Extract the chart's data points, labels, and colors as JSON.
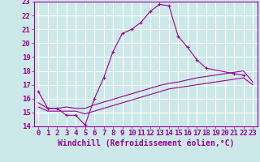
{
  "title": "",
  "xlabel": "Windchill (Refroidissement éolien,°C)",
  "ylabel": "",
  "background_color": "#cce8e8",
  "grid_color": "#ffffff",
  "line_color": "#990099",
  "xlim": [
    -0.5,
    23.5
  ],
  "ylim": [
    14,
    23
  ],
  "yticks": [
    14,
    15,
    16,
    17,
    18,
    19,
    20,
    21,
    22,
    23
  ],
  "xticks": [
    0,
    1,
    2,
    3,
    4,
    5,
    6,
    7,
    8,
    9,
    10,
    11,
    12,
    13,
    14,
    15,
    16,
    17,
    18,
    19,
    20,
    21,
    22,
    23
  ],
  "series1_x": [
    0,
    1,
    2,
    3,
    4,
    5,
    6,
    7,
    8,
    9,
    10,
    11,
    12,
    13,
    14,
    15,
    16,
    17,
    18,
    21,
    22
  ],
  "series1_y": [
    16.5,
    15.3,
    15.3,
    14.8,
    14.8,
    14.1,
    16.0,
    17.5,
    19.4,
    20.7,
    21.0,
    21.5,
    22.3,
    22.8,
    22.7,
    20.5,
    19.7,
    18.8,
    18.2,
    17.8,
    17.7
  ],
  "series2_x": [
    0,
    1,
    2,
    3,
    4,
    5,
    6,
    7,
    8,
    9,
    10,
    11,
    12,
    13,
    14,
    15,
    16,
    17,
    18,
    19,
    20,
    21,
    22,
    23
  ],
  "series2_y": [
    15.7,
    15.3,
    15.3,
    15.4,
    15.3,
    15.3,
    15.55,
    15.75,
    15.95,
    16.15,
    16.35,
    16.55,
    16.75,
    16.95,
    17.1,
    17.2,
    17.35,
    17.5,
    17.6,
    17.7,
    17.8,
    17.9,
    18.0,
    17.2
  ],
  "series3_x": [
    0,
    1,
    2,
    3,
    4,
    5,
    6,
    7,
    8,
    9,
    10,
    11,
    12,
    13,
    14,
    15,
    16,
    17,
    18,
    19,
    20,
    21,
    22,
    23
  ],
  "series3_y": [
    15.4,
    15.1,
    15.1,
    15.1,
    15.1,
    14.9,
    15.1,
    15.3,
    15.5,
    15.7,
    15.9,
    16.1,
    16.3,
    16.5,
    16.7,
    16.8,
    16.9,
    17.0,
    17.1,
    17.2,
    17.3,
    17.4,
    17.5,
    17.0
  ],
  "font_color": "#990099",
  "tick_fontsize": 6.5,
  "label_fontsize": 7.0
}
